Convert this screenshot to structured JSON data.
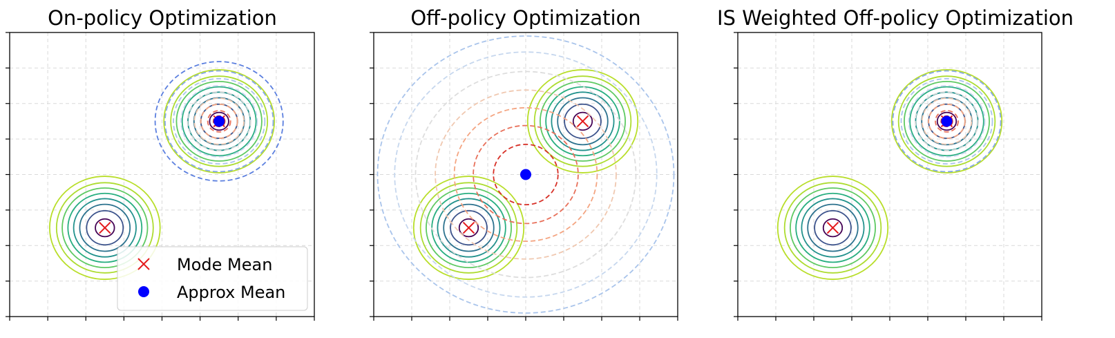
{
  "chart_data": [
    {
      "type": "contour",
      "title": "On-policy Optimization",
      "xlim": [
        -4,
        4
      ],
      "ylim": [
        -4,
        4
      ],
      "grid": true,
      "legend": {
        "placement": "lower-right",
        "entries": [
          {
            "label": "Mode Mean",
            "marker": "x",
            "color": "#e41a1c"
          },
          {
            "label": "Approx Mean",
            "marker": "dot",
            "color": "#0000ff"
          }
        ]
      },
      "modes": [
        {
          "x": -1.5,
          "y": -1.5
        },
        {
          "x": 1.5,
          "y": 1.5
        }
      ],
      "target_radii": [
        0.25,
        0.48,
        0.66,
        0.82,
        0.97,
        1.12,
        1.27,
        1.45
      ],
      "approx": {
        "x": 1.5,
        "y": 1.5,
        "radii": [
          0.15,
          0.3,
          0.48,
          0.65,
          0.83,
          1.0,
          1.2,
          1.42,
          1.68
        ]
      }
    },
    {
      "type": "contour",
      "title": "Off-policy Optimization",
      "xlim": [
        -4,
        4
      ],
      "ylim": [
        -4,
        4
      ],
      "grid": true,
      "modes": [
        {
          "x": -1.5,
          "y": -1.5
        },
        {
          "x": 1.5,
          "y": 1.5
        }
      ],
      "target_radii": [
        0.25,
        0.48,
        0.66,
        0.82,
        0.97,
        1.12,
        1.27,
        1.45
      ],
      "approx": {
        "x": 0.0,
        "y": 0.0,
        "radii": [
          0.85,
          1.38,
          1.88,
          2.38,
          2.9,
          3.45,
          3.9
        ]
      }
    },
    {
      "type": "contour",
      "title": "IS Weighted Off-policy Optimization",
      "xlim": [
        -4,
        4
      ],
      "ylim": [
        -4,
        4
      ],
      "grid": true,
      "modes": [
        {
          "x": -1.5,
          "y": -1.5
        },
        {
          "x": 1.5,
          "y": 1.5
        }
      ],
      "target_radii": [
        0.25,
        0.48,
        0.66,
        0.82,
        0.97,
        1.12,
        1.27,
        1.45
      ],
      "approx": {
        "x": 1.5,
        "y": 1.5,
        "radii": [
          0.15,
          0.3,
          0.48,
          0.65,
          0.83,
          1.0,
          1.2,
          1.42
        ]
      }
    }
  ],
  "colors": {
    "target_levels": [
      "#440154",
      "#3b528b",
      "#2c728e",
      "#21918c",
      "#28ae80",
      "#5ec962",
      "#addc30",
      "#b8de29"
    ],
    "approx_levels": [
      "#d73027",
      "#e8705a",
      "#f4a582",
      "#f0c8b0",
      "#dddddd",
      "#c6d7ee",
      "#a9c4eb",
      "#86a9e8",
      "#5b7fdf"
    ],
    "mode_mean": "#e41a1c",
    "approx_mean": "#0000ff"
  }
}
